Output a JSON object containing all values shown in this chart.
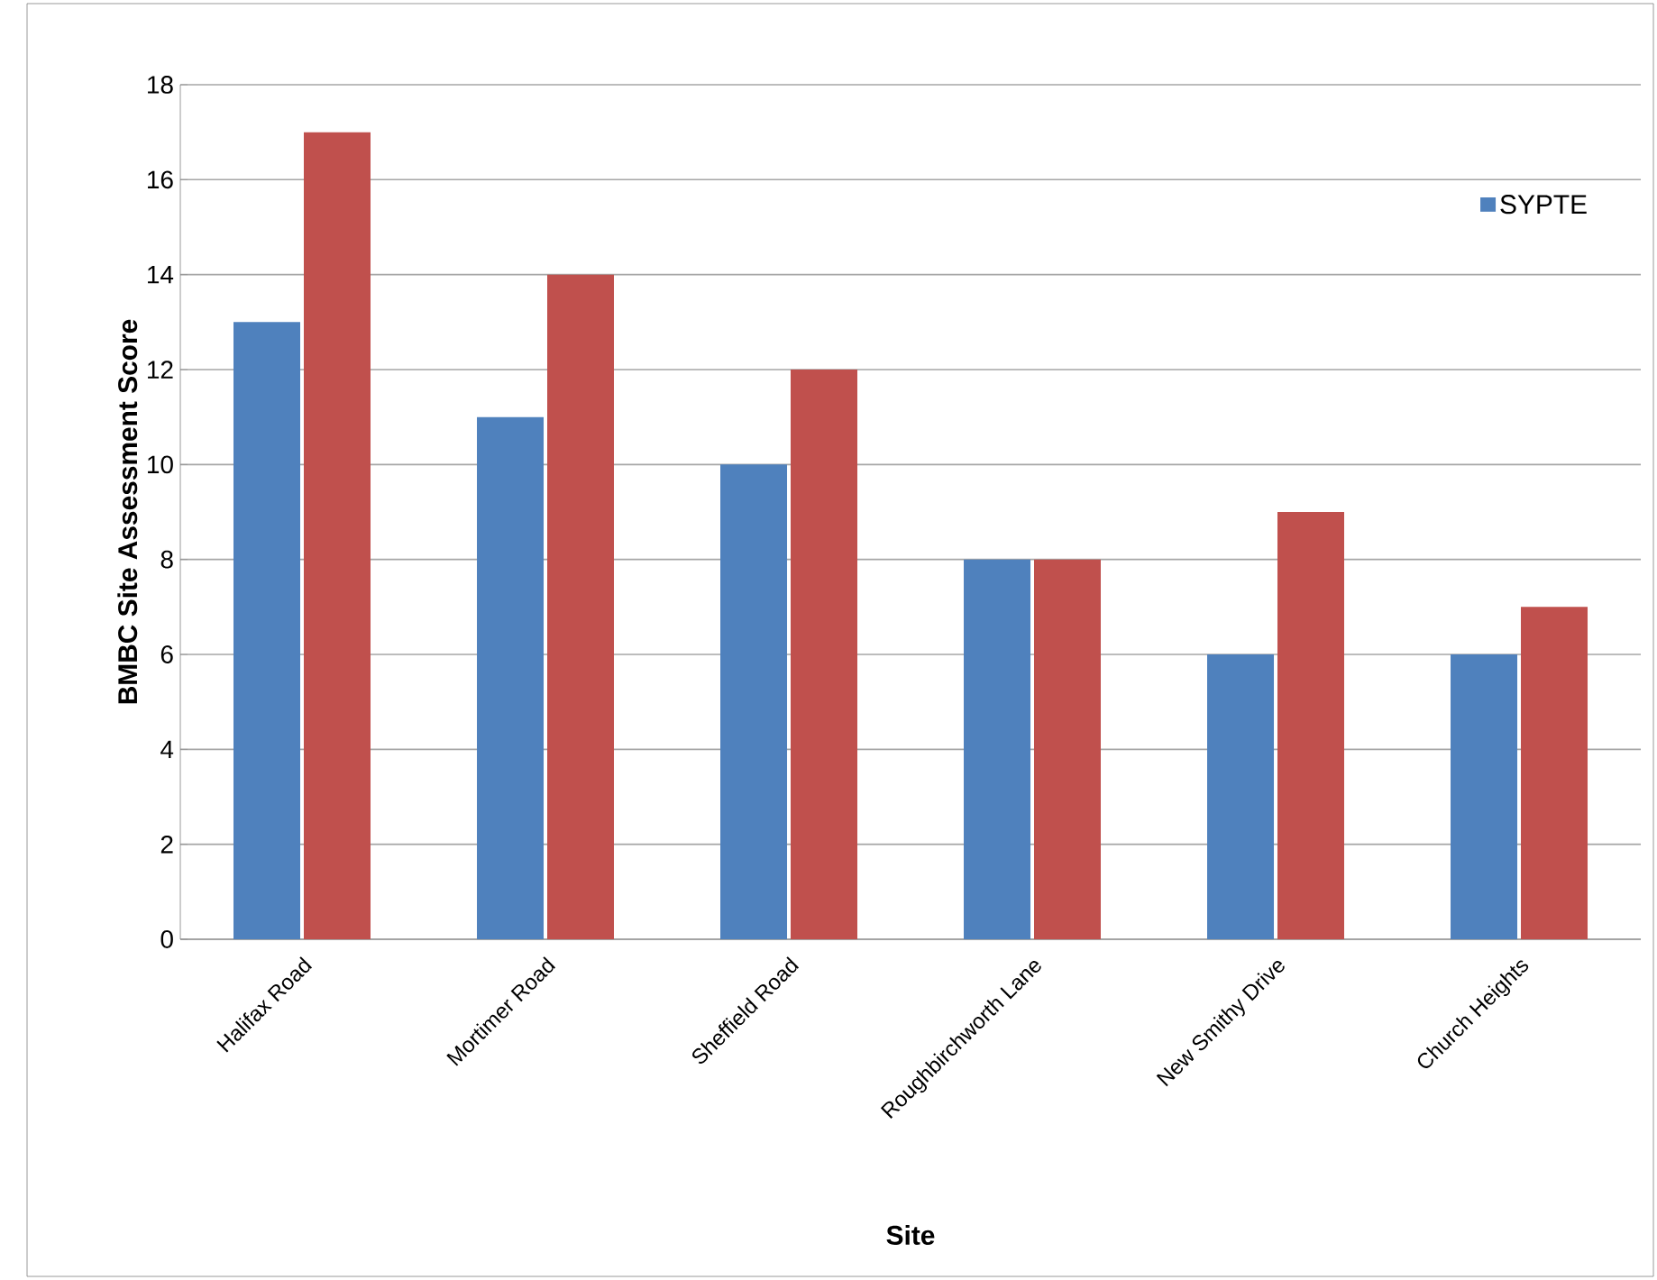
{
  "chart_data": {
    "type": "bar",
    "xlabel": "Site",
    "ylabel": "BMBC Site Assessment Score",
    "categories": [
      "Halifax Road",
      "Mortimer Road",
      "Sheffield Road",
      "Roughbirchworth Lane",
      "New Smithy Drive",
      "Church Heights"
    ],
    "series": [
      {
        "name": "SYPTE",
        "color": "#4f81bd",
        "values": [
          13,
          11,
          10,
          8,
          6,
          6
        ]
      },
      {
        "color": "#c0504d",
        "values": [
          17,
          14,
          12,
          8,
          9,
          7
        ]
      }
    ],
    "ylim": [
      0,
      18
    ],
    "yticks": [
      0,
      2,
      4,
      6,
      8,
      10,
      12,
      14,
      16,
      18
    ],
    "grid": "y",
    "legend": "top right"
  }
}
